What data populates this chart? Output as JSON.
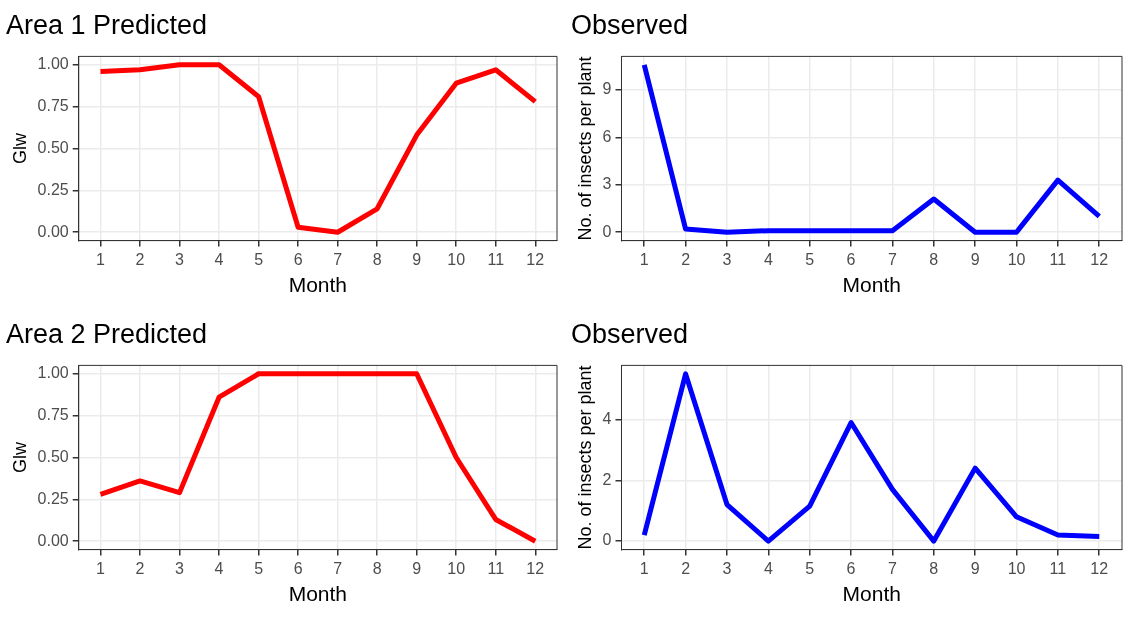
{
  "chart_data": [
    {
      "type": "line",
      "title": "Area 1 Predicted",
      "xlabel": "Month",
      "ylabel": "Glw",
      "x": [
        1,
        2,
        3,
        4,
        5,
        6,
        7,
        8,
        9,
        10,
        11,
        12
      ],
      "xlim": [
        0.45,
        12.55
      ],
      "xticks": [
        1,
        2,
        3,
        4,
        5,
        6,
        7,
        8,
        9,
        10,
        11,
        12
      ],
      "ylim": [
        -0.05,
        1.05
      ],
      "yticks": [
        {
          "value": 0,
          "label": "0.00"
        },
        {
          "value": 0.25,
          "label": "0.25"
        },
        {
          "value": 0.5,
          "label": "0.50"
        },
        {
          "value": 0.75,
          "label": "0.75"
        },
        {
          "value": 1,
          "label": "1.00"
        }
      ],
      "grid": true,
      "legend": false,
      "marker": "none",
      "line_style": "solid",
      "series": [
        {
          "color": "#ff0000",
          "values": [
            0.96,
            0.97,
            1,
            1,
            0.81,
            0.03,
            0,
            0.14,
            0.58,
            0.89,
            0.97,
            0.78
          ]
        }
      ]
    },
    {
      "type": "line",
      "title": "Observed",
      "xlabel": "Month",
      "ylabel": "No. of insects per plant",
      "x": [
        1,
        2,
        3,
        4,
        5,
        6,
        7,
        8,
        9,
        10,
        11,
        12
      ],
      "xlim": [
        0.45,
        12.55
      ],
      "xticks": [
        1,
        2,
        3,
        4,
        5,
        6,
        7,
        8,
        9,
        10,
        11,
        12
      ],
      "ylim": [
        -0.53,
        11.13
      ],
      "yticks": [
        0,
        3,
        6,
        9
      ],
      "grid": true,
      "legend": false,
      "marker": "none",
      "line_style": "solid",
      "series": [
        {
          "color": "#0000ff",
          "values": [
            10.6,
            0.2,
            0,
            0.1,
            0.1,
            0.1,
            0.1,
            2.1,
            0,
            0,
            3.3,
            1
          ]
        }
      ]
    },
    {
      "type": "line",
      "title": "Area 2 Predicted",
      "xlabel": "Month",
      "ylabel": "Glw",
      "x": [
        1,
        2,
        3,
        4,
        5,
        6,
        7,
        8,
        9,
        10,
        11,
        12
      ],
      "xlim": [
        0.45,
        12.55
      ],
      "xticks": [
        1,
        2,
        3,
        4,
        5,
        6,
        7,
        8,
        9,
        10,
        11,
        12
      ],
      "ylim": [
        -0.05,
        1.05
      ],
      "yticks": [
        {
          "value": 0,
          "label": "0.00"
        },
        {
          "value": 0.25,
          "label": "0.25"
        },
        {
          "value": 0.5,
          "label": "0.50"
        },
        {
          "value": 0.75,
          "label": "0.75"
        },
        {
          "value": 1,
          "label": "1.00"
        }
      ],
      "grid": true,
      "legend": false,
      "marker": "none",
      "line_style": "solid",
      "series": [
        {
          "color": "#ff0000",
          "values": [
            0.28,
            0.36,
            0.29,
            0.86,
            1,
            1,
            1,
            1,
            1,
            0.5,
            0.13,
            0
          ]
        }
      ]
    },
    {
      "type": "line",
      "title": "Observed",
      "xlabel": "Month",
      "ylabel": "No. of insects per plant",
      "x": [
        1,
        2,
        3,
        4,
        5,
        6,
        7,
        8,
        9,
        10,
        11,
        12
      ],
      "xlim": [
        0.45,
        12.55
      ],
      "xticks": [
        1,
        2,
        3,
        4,
        5,
        6,
        7,
        8,
        9,
        10,
        11,
        12
      ],
      "ylim": [
        -0.28,
        5.78
      ],
      "yticks": [
        0,
        2,
        4
      ],
      "grid": true,
      "legend": false,
      "marker": "none",
      "line_style": "solid",
      "series": [
        {
          "color": "#0000ff",
          "values": [
            0.2,
            5.5,
            1.2,
            0,
            1.15,
            3.9,
            1.7,
            0,
            2.4,
            0.8,
            0.2,
            0.15
          ]
        }
      ]
    }
  ]
}
